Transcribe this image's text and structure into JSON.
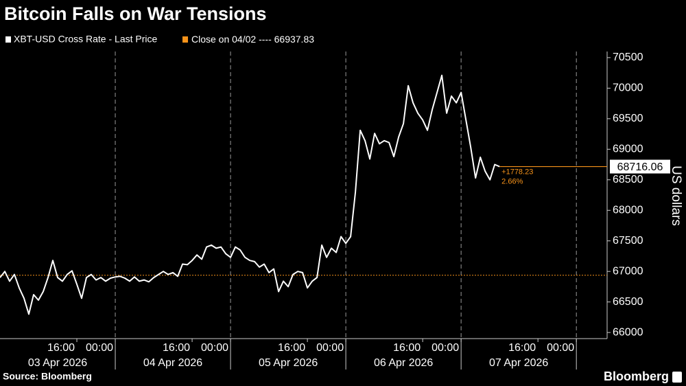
{
  "chart_data": {
    "type": "line",
    "title": "Bitcoin Falls on War Tensions",
    "source": "Source: Bloomberg",
    "brand": "Bloomberg",
    "y_axis_label": "US dollars",
    "day_labels": [
      "03 Apr 2026",
      "04 Apr 2026",
      "05 Apr 2026",
      "06 Apr 2026",
      "07 Apr 2026"
    ],
    "x": [
      0,
      1,
      2,
      3,
      4,
      5,
      6,
      7,
      8,
      9,
      10,
      11,
      12,
      13,
      14,
      15,
      16,
      17,
      18,
      19,
      20,
      21,
      22,
      23,
      24,
      25,
      26,
      27,
      28,
      29,
      30,
      31,
      32,
      33,
      34,
      35,
      36,
      37,
      38,
      39,
      40,
      41,
      42,
      43,
      44,
      45,
      46,
      47,
      48,
      49,
      50,
      51,
      52,
      53,
      54,
      55,
      56,
      57,
      58,
      59,
      60,
      61,
      62,
      63,
      64,
      65,
      66,
      67,
      68,
      69,
      70,
      71,
      72,
      73,
      74,
      75,
      76,
      77,
      78,
      79,
      80,
      81,
      82,
      83,
      84,
      85,
      86,
      87,
      88,
      89,
      90,
      91,
      92,
      93,
      94,
      95,
      96,
      97,
      98,
      99,
      100,
      101,
      102,
      103,
      104
    ],
    "series": [
      {
        "name": "XBT-USD Cross Rate - Last Price",
        "color": "#ffffff",
        "values": [
          66900,
          67000,
          66840,
          66950,
          66730,
          66560,
          66300,
          66620,
          66530,
          66670,
          66900,
          67180,
          66900,
          66840,
          66950,
          67010,
          66790,
          66560,
          66900,
          66950,
          66860,
          66900,
          66840,
          66890,
          66910,
          66920,
          66890,
          66840,
          66910,
          66840,
          66860,
          66830,
          66900,
          66950,
          67000,
          66950,
          66980,
          66920,
          67120,
          67110,
          67180,
          67270,
          67200,
          67400,
          67430,
          67380,
          67400,
          67290,
          67230,
          67400,
          67350,
          67230,
          67180,
          67160,
          67070,
          67120,
          66980,
          67040,
          66670,
          66840,
          66750,
          66950,
          67000,
          66980,
          66730,
          66840,
          66900,
          67430,
          67230,
          67380,
          67310,
          67570,
          67460,
          67570,
          68300,
          69310,
          69140,
          68840,
          69260,
          69090,
          69140,
          69110,
          68880,
          69200,
          69420,
          70040,
          69760,
          69590,
          69480,
          69310,
          69650,
          69930,
          70210,
          69590,
          69870,
          69760,
          69930,
          69480,
          69030,
          68530,
          68870,
          68640,
          68500,
          68750,
          68716.06
        ]
      }
    ],
    "reference": {
      "name": "Close on 04/02",
      "separator": "----",
      "value": 66937.83,
      "color": "#f7931a"
    },
    "change": {
      "value": 1778.23,
      "label": "+1778.23"
    },
    "change_pct": {
      "value": 2.66,
      "label": "2.66%"
    },
    "xlim": [
      0,
      126.4
    ],
    "xticks": [
      {
        "value": 16,
        "label": "16:00"
      },
      {
        "value": 24,
        "label": "00:00"
      },
      {
        "value": 40,
        "label": "16:00"
      },
      {
        "value": 48,
        "label": "00:00"
      },
      {
        "value": 64,
        "label": "16:00"
      },
      {
        "value": 72,
        "label": "00:00"
      },
      {
        "value": 88,
        "label": "16:00"
      },
      {
        "value": 96,
        "label": "00:00"
      },
      {
        "value": 112,
        "label": "16:00"
      },
      {
        "value": 120,
        "label": "00:00"
      }
    ],
    "ylim": [
      65900,
      70600
    ],
    "yticks": [
      66000,
      66500,
      67000,
      67500,
      68000,
      68500,
      69000,
      69500,
      70000,
      70500
    ]
  }
}
